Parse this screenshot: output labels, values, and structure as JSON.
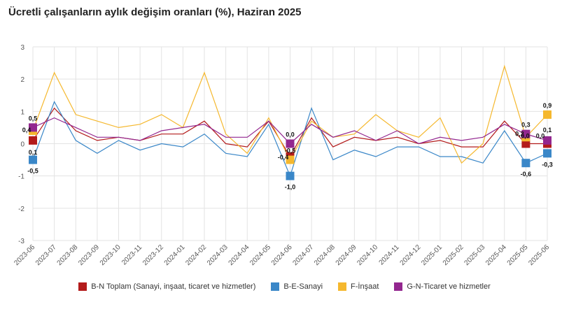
{
  "chart_data": {
    "type": "line",
    "title": "Ücretli çalışanların aylık değişim oranları (%), Haziran 2025",
    "categories": [
      "2023-06",
      "2023-07",
      "2023-08",
      "2023-09",
      "2023-10",
      "2023-11",
      "2023-12",
      "2024-01",
      "2024-02",
      "2024-03",
      "2024-04",
      "2024-05",
      "2024-06",
      "2024-07",
      "2024-08",
      "2024-09",
      "2024-10",
      "2024-11",
      "2024-12",
      "2025-01",
      "2025-02",
      "2025-03",
      "2025-04",
      "2025-05",
      "2025-06"
    ],
    "y_ticks": [
      "3",
      "2",
      "1",
      "0",
      "-1",
      "-2",
      "-3"
    ],
    "ylim": [
      -3,
      3
    ],
    "grid": true,
    "legend_position": "bottom",
    "series": [
      {
        "name": "B-N Toplam (Sanayi, inşaat, ticaret ve hizmetler)",
        "color": "#b31b1b",
        "values": [
          0.1,
          1.1,
          0.4,
          0.1,
          0.2,
          0.1,
          0.3,
          0.3,
          0.7,
          0.0,
          -0.1,
          0.7,
          -0.4,
          0.8,
          -0.1,
          0.2,
          0.1,
          0.2,
          0.0,
          0.1,
          -0.1,
          -0.1,
          0.7,
          0.0,
          0.0
        ]
      },
      {
        "name": "B-E-Sanayi",
        "color": "#3a87c8",
        "values": [
          -0.5,
          1.3,
          0.1,
          -0.3,
          0.1,
          -0.2,
          0.0,
          -0.1,
          0.3,
          -0.3,
          -0.4,
          0.6,
          -1.0,
          1.1,
          -0.5,
          -0.2,
          -0.4,
          -0.1,
          -0.1,
          -0.4,
          -0.4,
          -0.6,
          0.4,
          -0.6,
          -0.3
        ]
      },
      {
        "name": "F-İnşaat",
        "color": "#f5b82e",
        "values": [
          0.4,
          2.2,
          0.9,
          0.7,
          0.5,
          0.6,
          0.9,
          0.5,
          2.2,
          0.3,
          -0.3,
          0.8,
          -0.5,
          0.7,
          0.2,
          0.3,
          0.9,
          0.4,
          0.2,
          0.8,
          -0.6,
          0.0,
          2.4,
          0.2,
          0.9
        ]
      },
      {
        "name": "G-N-Ticaret ve hizmetler",
        "color": "#93278f",
        "values": [
          0.5,
          0.8,
          0.5,
          0.2,
          0.2,
          0.1,
          0.4,
          0.5,
          0.6,
          0.2,
          0.2,
          0.7,
          0.0,
          0.6,
          0.2,
          0.4,
          0.1,
          0.4,
          0.0,
          0.2,
          0.1,
          0.2,
          0.6,
          0.3,
          0.1
        ]
      }
    ],
    "data_labels": [
      {
        "series": 0,
        "index": 0,
        "text": "0,1"
      },
      {
        "series": 1,
        "index": 0,
        "text": "-0,5"
      },
      {
        "series": 2,
        "index": 0,
        "text": "0,4"
      },
      {
        "series": 3,
        "index": 0,
        "text": "0,5"
      },
      {
        "series": 0,
        "index": 12,
        "text": "-0,4"
      },
      {
        "series": 1,
        "index": 12,
        "text": "-1,0"
      },
      {
        "series": 2,
        "index": 12,
        "text": "-0,5"
      },
      {
        "series": 3,
        "index": 12,
        "text": "0,0"
      },
      {
        "series": 0,
        "index": 23,
        "text": "0,0"
      },
      {
        "series": 1,
        "index": 23,
        "text": "-0,6"
      },
      {
        "series": 2,
        "index": 23,
        "text": "0,2"
      },
      {
        "series": 3,
        "index": 23,
        "text": "0,3"
      },
      {
        "series": 0,
        "index": 24,
        "text": "0,0"
      },
      {
        "series": 1,
        "index": 24,
        "text": "-0,3"
      },
      {
        "series": 2,
        "index": 24,
        "text": "0,9"
      },
      {
        "series": 3,
        "index": 24,
        "text": "0,1"
      }
    ]
  }
}
